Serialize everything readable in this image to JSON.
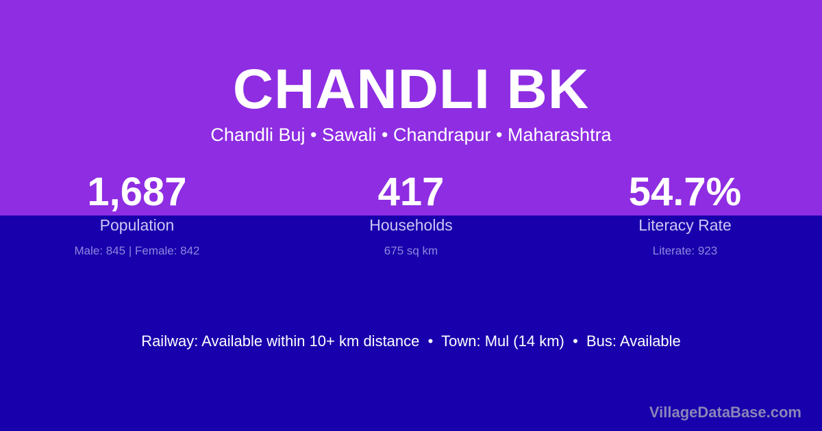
{
  "colors": {
    "top_band": "#8e2de2",
    "bottom_band": "#1800ac"
  },
  "title": "CHANDLI BK",
  "subtitle": "Chandli Buj • Sawali • Chandrapur • Maharashtra",
  "stats": [
    {
      "value": "1,687",
      "label": "Population",
      "sub": "Male: 845 | Female: 842"
    },
    {
      "value": "417",
      "label": "Households",
      "sub": "675 sq km"
    },
    {
      "value": "54.7%",
      "label": "Literacy Rate",
      "sub": "Literate: 923"
    }
  ],
  "info": "Railway: Available within 10+ km distance  •  Town: Mul (14 km)  •  Bus: Available",
  "brand": "VillageDataBase.com"
}
